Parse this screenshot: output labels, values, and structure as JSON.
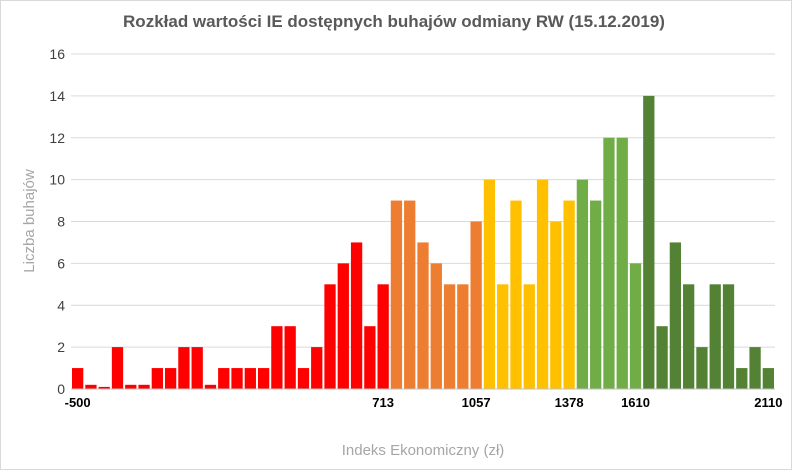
{
  "chart_data": {
    "type": "bar",
    "title": "Rozkład wartości IE dostępnych buhajów odmiany RW (15.12.2019)",
    "xlabel": "Indeks Ekonomiczny (zł)",
    "ylabel": "Liczba buhajów",
    "ylim": [
      0,
      16
    ],
    "yticks": [
      0,
      2,
      4,
      6,
      8,
      10,
      12,
      14,
      16
    ],
    "grid": true,
    "legend": "none",
    "x_tick_labels": [
      {
        "label": "-500",
        "bar_index": 0
      },
      {
        "label": "713",
        "bar_index": 23
      },
      {
        "label": "1057",
        "bar_index": 30
      },
      {
        "label": "1378",
        "bar_index": 37
      },
      {
        "label": "1610",
        "bar_index": 42
      },
      {
        "label": "2110",
        "bar_index": 52
      }
    ],
    "values": [
      1,
      0.2,
      0.1,
      2,
      0.2,
      0.2,
      1,
      1,
      2,
      2,
      0.2,
      1,
      1,
      1,
      1,
      3,
      3,
      1,
      2,
      5,
      6,
      7,
      3,
      5,
      9,
      9,
      7,
      6,
      5,
      5,
      8,
      10,
      5,
      9,
      5,
      10,
      8,
      9,
      10,
      9,
      12,
      12,
      6,
      14,
      3,
      7,
      5,
      2,
      5,
      5,
      1,
      2,
      1
    ],
    "bar_colors": [
      "#ff0000",
      "#ff0000",
      "#ff0000",
      "#ff0000",
      "#ff0000",
      "#ff0000",
      "#ff0000",
      "#ff0000",
      "#ff0000",
      "#ff0000",
      "#ff0000",
      "#ff0000",
      "#ff0000",
      "#ff0000",
      "#ff0000",
      "#ff0000",
      "#ff0000",
      "#ff0000",
      "#ff0000",
      "#ff0000",
      "#ff0000",
      "#ff0000",
      "#ff0000",
      "#ff0000",
      "#ed7d31",
      "#ed7d31",
      "#ed7d31",
      "#ed7d31",
      "#ed7d31",
      "#ed7d31",
      "#ed7d31",
      "#ffc000",
      "#ffc000",
      "#ffc000",
      "#ffc000",
      "#ffc000",
      "#ffc000",
      "#ffc000",
      "#70ad47",
      "#70ad47",
      "#70ad47",
      "#70ad47",
      "#70ad47",
      "#548235",
      "#548235",
      "#548235",
      "#548235",
      "#548235",
      "#548235",
      "#548235",
      "#548235",
      "#548235",
      "#548235"
    ]
  }
}
